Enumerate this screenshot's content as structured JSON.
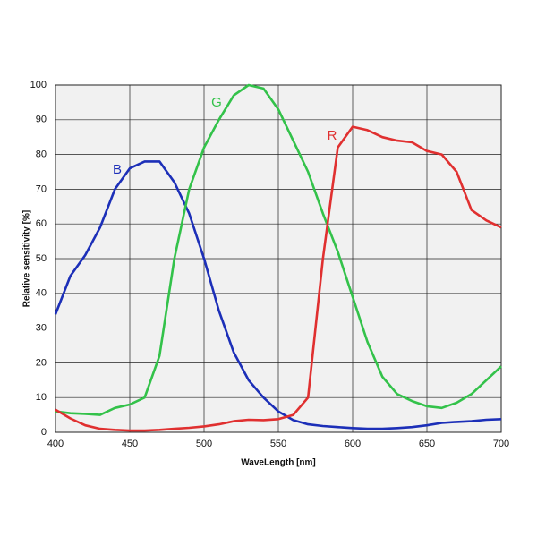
{
  "chart_data": {
    "type": "line",
    "x_label": "WaveLength [nm]",
    "y_label": "Relative sensitivity [%]",
    "x": [
      400,
      410,
      420,
      430,
      440,
      450,
      460,
      470,
      480,
      490,
      500,
      510,
      520,
      530,
      540,
      550,
      560,
      570,
      580,
      590,
      600,
      610,
      620,
      630,
      640,
      650,
      660,
      670,
      680,
      690,
      700
    ],
    "series": [
      {
        "name": "B",
        "color": "#1c2fb8",
        "values": [
          34,
          45,
          51,
          59,
          70,
          76,
          78,
          78,
          72,
          63,
          50,
          35,
          23,
          15,
          10,
          6,
          3.5,
          2.3,
          1.8,
          1.5,
          1.2,
          1,
          1,
          1.2,
          1.5,
          2,
          2.7,
          3,
          3.2,
          3.6,
          3.8
        ]
      },
      {
        "name": "G",
        "color": "#33c24a",
        "values": [
          6,
          5.5,
          5.3,
          5,
          7,
          8,
          10,
          22,
          50,
          70,
          82,
          90,
          97,
          100,
          99,
          93,
          84,
          75,
          63,
          52,
          39,
          26,
          16,
          11,
          9,
          7.5,
          7,
          8.5,
          11,
          15,
          19
        ]
      },
      {
        "name": "R",
        "color": "#e03030",
        "values": [
          6.5,
          4,
          2,
          1,
          0.7,
          0.5,
          0.5,
          0.7,
          1,
          1.3,
          1.7,
          2.3,
          3.2,
          3.6,
          3.5,
          3.8,
          5,
          10,
          50,
          82,
          88,
          87,
          85,
          84,
          83.5,
          81,
          80,
          75,
          64,
          61,
          59
        ]
      }
    ],
    "xlim": [
      400,
      700
    ],
    "ylim": [
      0,
      100
    ],
    "xticks": [
      400,
      450,
      500,
      550,
      600,
      650,
      700
    ],
    "yticks": [
      0,
      10,
      20,
      30,
      40,
      50,
      60,
      70,
      80,
      90,
      100
    ],
    "grid": true
  }
}
